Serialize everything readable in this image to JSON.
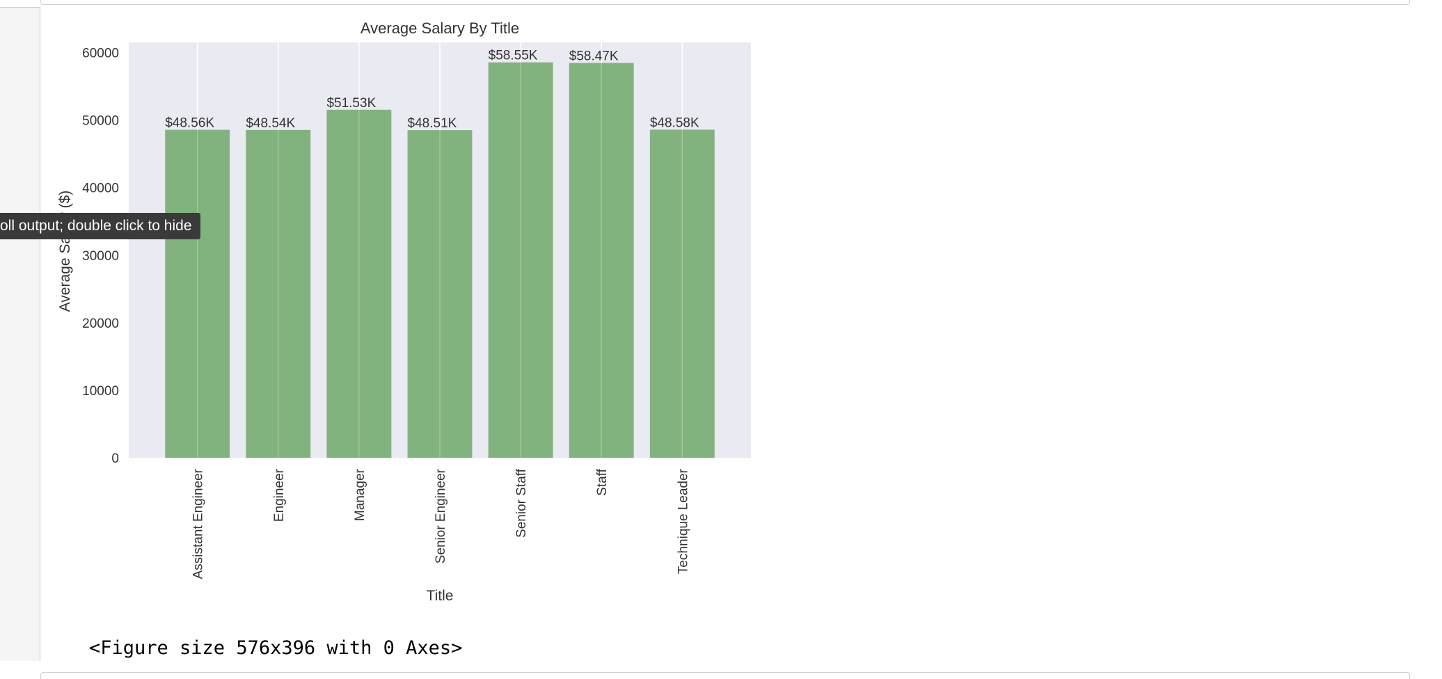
{
  "tooltip": {
    "text": "oll output; double click to hide"
  },
  "output": {
    "figure_text": "<Figure size 576x396 with 0 Axes>"
  },
  "colors": {
    "bar": "#82b37f",
    "plot_background": "#eaeaf2",
    "grid": "#ffffff",
    "text": "#333333"
  },
  "chart_data": {
    "type": "bar",
    "title": "Average Salary By Title",
    "xlabel": "Title",
    "ylabel": "Average Salary ($)",
    "categories": [
      "Assistant Engineer",
      "Engineer",
      "Manager",
      "Senior Engineer",
      "Senior Staff",
      "Staff",
      "Technique Leader"
    ],
    "values": [
      48560,
      48540,
      51530,
      48510,
      58550,
      58470,
      48580
    ],
    "data_labels": [
      "$48.56K",
      "$48.54K",
      "$51.53K",
      "$48.51K",
      "$58.55K",
      "$58.47K",
      "$48.58K"
    ],
    "ylim": [
      0,
      61500
    ],
    "yticks": [
      0,
      10000,
      20000,
      30000,
      40000,
      50000,
      60000
    ],
    "ytick_labels": [
      "0",
      "10000",
      "20000",
      "30000",
      "40000",
      "50000",
      "60000"
    ],
    "grid": true
  }
}
